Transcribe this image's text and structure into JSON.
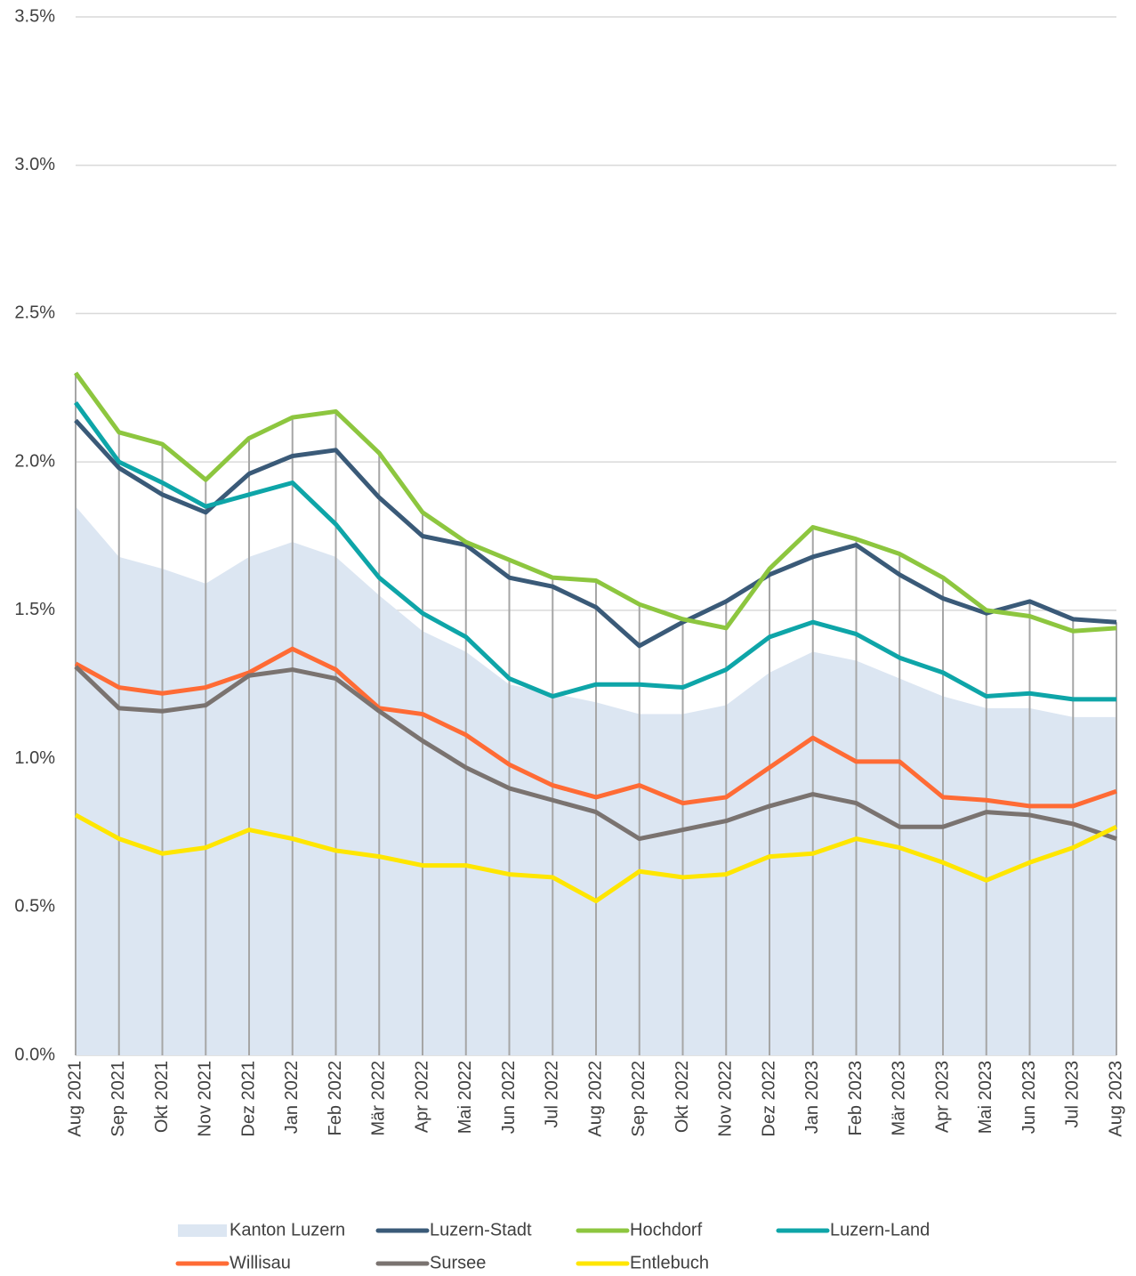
{
  "chart_data": {
    "type": "line",
    "categories": [
      "Aug 2021",
      "Sep 2021",
      "Okt 2021",
      "Nov 2021",
      "Dez 2021",
      "Jan 2022",
      "Feb 2022",
      "Mär 2022",
      "Apr 2022",
      "Mai 2022",
      "Jun 2022",
      "Jul 2022",
      "Aug 2022",
      "Sep 2022",
      "Okt 2022",
      "Nov 2022",
      "Dez 2022",
      "Jan 2023",
      "Feb 2023",
      "Mär 2023",
      "Apr 2023",
      "Mai 2023",
      "Jun 2023",
      "Jul 2023",
      "Aug 2023"
    ],
    "ylim": [
      0,
      3.5
    ],
    "yticks": [
      {
        "value": 0,
        "label": "0.0%"
      },
      {
        "value": 0.5,
        "label": "0.5%"
      },
      {
        "value": 1,
        "label": "1.0%"
      },
      {
        "value": 1.5,
        "label": "1.5%"
      },
      {
        "value": 2,
        "label": "2.0%"
      },
      {
        "value": 2.5,
        "label": "2.5%"
      },
      {
        "value": 3,
        "label": "3.0%"
      },
      {
        "value": 3.5,
        "label": "3.5%"
      }
    ],
    "grid": true,
    "legend": "bottom",
    "series": [
      {
        "name": "Kanton Luzern",
        "style": "area",
        "color": "#dce6f2",
        "values": [
          1.85,
          1.68,
          1.64,
          1.59,
          1.68,
          1.73,
          1.68,
          1.55,
          1.43,
          1.36,
          1.25,
          1.22,
          1.19,
          1.15,
          1.15,
          1.18,
          1.29,
          1.36,
          1.33,
          1.27,
          1.21,
          1.17,
          1.17,
          1.14,
          1.14
        ]
      },
      {
        "name": "Luzern-Stadt",
        "style": "line",
        "color": "#3a5a78",
        "values": [
          2.14,
          1.98,
          1.89,
          1.83,
          1.96,
          2.02,
          2.04,
          1.88,
          1.75,
          1.72,
          1.61,
          1.58,
          1.51,
          1.38,
          1.46,
          1.53,
          1.62,
          1.68,
          1.72,
          1.62,
          1.54,
          1.49,
          1.53,
          1.47,
          1.46
        ]
      },
      {
        "name": "Hochdorf",
        "style": "line",
        "color": "#8dc63f",
        "values": [
          2.3,
          2.1,
          2.06,
          1.94,
          2.08,
          2.15,
          2.17,
          2.03,
          1.83,
          1.73,
          1.67,
          1.61,
          1.6,
          1.52,
          1.47,
          1.44,
          1.64,
          1.78,
          1.74,
          1.69,
          1.61,
          1.5,
          1.48,
          1.43,
          1.44
        ]
      },
      {
        "name": "Luzern-Land",
        "style": "line",
        "color": "#0ea5a8",
        "values": [
          2.2,
          2.0,
          1.93,
          1.85,
          1.89,
          1.93,
          1.79,
          1.61,
          1.49,
          1.41,
          1.27,
          1.21,
          1.25,
          1.25,
          1.24,
          1.3,
          1.41,
          1.46,
          1.42,
          1.34,
          1.29,
          1.21,
          1.22,
          1.2,
          1.2
        ]
      },
      {
        "name": "Willisau",
        "style": "line",
        "color": "#ff6b35",
        "values": [
          1.32,
          1.24,
          1.22,
          1.24,
          1.29,
          1.37,
          1.3,
          1.17,
          1.15,
          1.08,
          0.98,
          0.91,
          0.87,
          0.91,
          0.85,
          0.87,
          0.97,
          1.07,
          0.99,
          0.99,
          0.87,
          0.86,
          0.84,
          0.84,
          0.89
        ]
      },
      {
        "name": "Sursee",
        "style": "line",
        "color": "#7a7370",
        "values": [
          1.31,
          1.17,
          1.16,
          1.18,
          1.28,
          1.3,
          1.27,
          1.16,
          1.06,
          0.97,
          0.9,
          0.86,
          0.82,
          0.73,
          0.76,
          0.79,
          0.84,
          0.88,
          0.85,
          0.77,
          0.77,
          0.82,
          0.81,
          0.78,
          0.73
        ]
      },
      {
        "name": "Entlebuch",
        "style": "line",
        "color": "#ffe600",
        "values": [
          0.81,
          0.73,
          0.68,
          0.7,
          0.76,
          0.73,
          0.69,
          0.67,
          0.64,
          0.64,
          0.61,
          0.6,
          0.52,
          0.62,
          0.6,
          0.61,
          0.67,
          0.68,
          0.73,
          0.7,
          0.65,
          0.59,
          0.65,
          0.7,
          0.77
        ]
      }
    ]
  }
}
